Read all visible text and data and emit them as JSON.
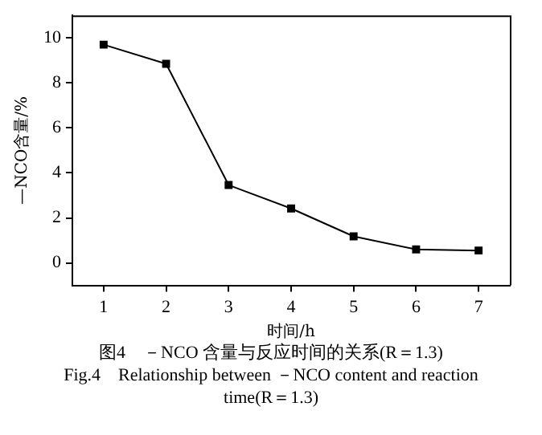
{
  "chart_data": {
    "type": "line",
    "xlabel": "时间/h",
    "ylabel": "—NCO含量/%",
    "x": [
      1,
      2,
      3,
      4,
      5,
      6,
      7
    ],
    "series": [
      {
        "color": "#000000",
        "values": [
          9.7,
          8.85,
          3.46,
          2.42,
          1.18,
          0.6,
          0.55
        ]
      }
    ],
    "xlim": [
      0.5,
      7.5
    ],
    "xticks": [
      1,
      2,
      3,
      4,
      5,
      6,
      7
    ],
    "ylim": [
      -1,
      11
    ],
    "yticks": [
      0,
      2,
      4,
      6,
      8,
      10
    ],
    "marker": "square",
    "line_style": "solid",
    "grid": false,
    "legend": false,
    "annotations": [
      "图4　－NCO 含量与反应时间的关系(R＝1.3)",
      "Fig.4　Relationship between －NCO content and reaction time(R＝1.3)"
    ]
  }
}
